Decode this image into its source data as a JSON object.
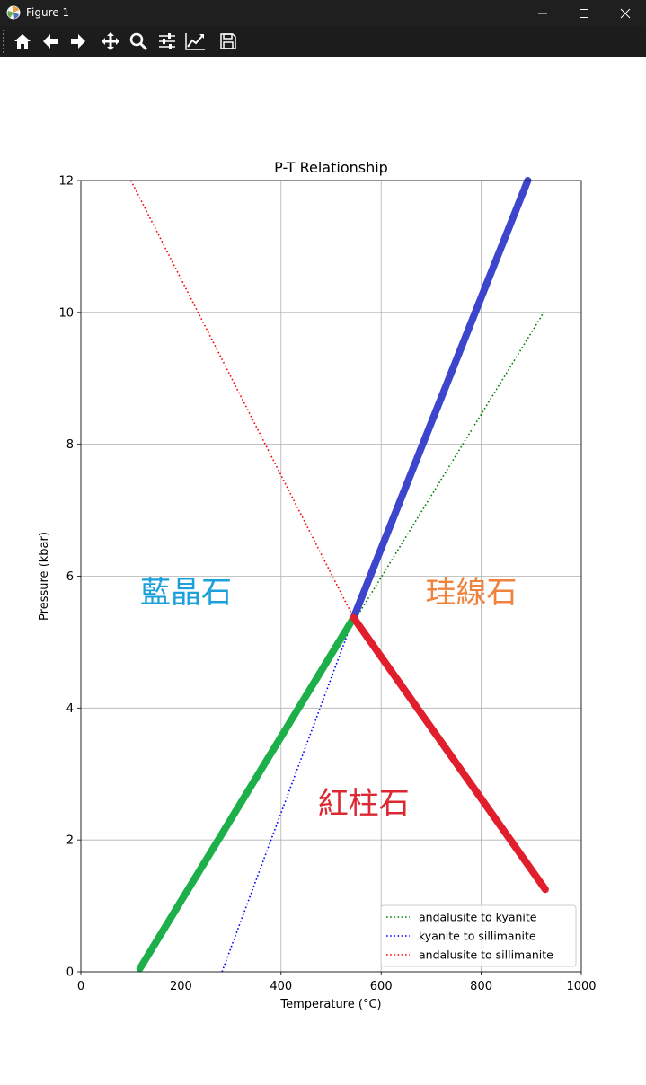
{
  "window": {
    "title": "Figure 1",
    "icons": [
      "matplotlib-icon",
      "minimize-icon",
      "maximize-icon",
      "close-icon"
    ]
  },
  "toolbar": {
    "buttons": [
      "home-icon",
      "back-icon",
      "forward-icon",
      "pan-icon",
      "zoom-icon",
      "configure-subplots-icon",
      "edit-axis-icon",
      "save-icon"
    ]
  },
  "chart_data": {
    "type": "line",
    "title": "P-T Relationship",
    "xlabel": "Temperature (°C)",
    "ylabel": "Pressure (kbar)",
    "xlim": [
      0,
      1000
    ],
    "ylim": [
      0,
      12
    ],
    "xticks": [
      0,
      200,
      400,
      600,
      800,
      1000
    ],
    "yticks": [
      0,
      2,
      4,
      6,
      8,
      10,
      12
    ],
    "grid": true,
    "legend_position": "lower right",
    "series": [
      {
        "name": "andalusite to kyanite",
        "style": "dotted",
        "color": "#008000",
        "x": [
          120,
          925
        ],
        "y": [
          0.05,
          10.0
        ]
      },
      {
        "name": "kyanite to sillimanite",
        "style": "dotted",
        "color": "#0000ff",
        "x": [
          282,
          545
        ],
        "y": [
          0.0,
          5.37
        ]
      },
      {
        "name": "andalusite to sillimanite",
        "style": "dotted",
        "color": "#ff0000",
        "x": [
          100,
          545,
          925
        ],
        "y": [
          12.0,
          5.37,
          1.3
        ]
      }
    ],
    "thick_lines": [
      {
        "color": "#1db04a",
        "x": [
          118,
          545
        ],
        "y": [
          0.05,
          5.37
        ]
      },
      {
        "color": "#3c45cc",
        "x": [
          545,
          893
        ],
        "y": [
          5.37,
          12.0
        ]
      },
      {
        "color": "#e01e2c",
        "x": [
          545,
          928
        ],
        "y": [
          5.37,
          1.25
        ]
      }
    ],
    "annotations": [
      {
        "text": "藍晶石",
        "x": 210,
        "y": 5.6,
        "color": "#1ba0dc"
      },
      {
        "text": "珪線石",
        "x": 780,
        "y": 5.6,
        "color": "#f0823c"
      },
      {
        "text": "紅柱石",
        "x": 565,
        "y": 2.4,
        "color": "#dc2832"
      }
    ]
  }
}
